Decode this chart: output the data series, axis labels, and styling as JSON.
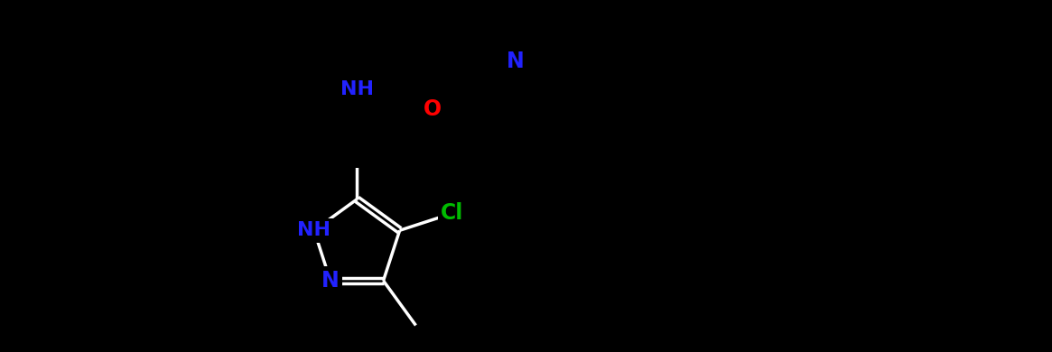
{
  "background_color": "#000000",
  "bond_color": "#ffffff",
  "atom_colors": {
    "Cl": "#00bb00",
    "O": "#ff0000",
    "N": "#2222ff",
    "C": "#ffffff"
  },
  "figsize": [
    11.65,
    3.9
  ],
  "dpi": 100
}
